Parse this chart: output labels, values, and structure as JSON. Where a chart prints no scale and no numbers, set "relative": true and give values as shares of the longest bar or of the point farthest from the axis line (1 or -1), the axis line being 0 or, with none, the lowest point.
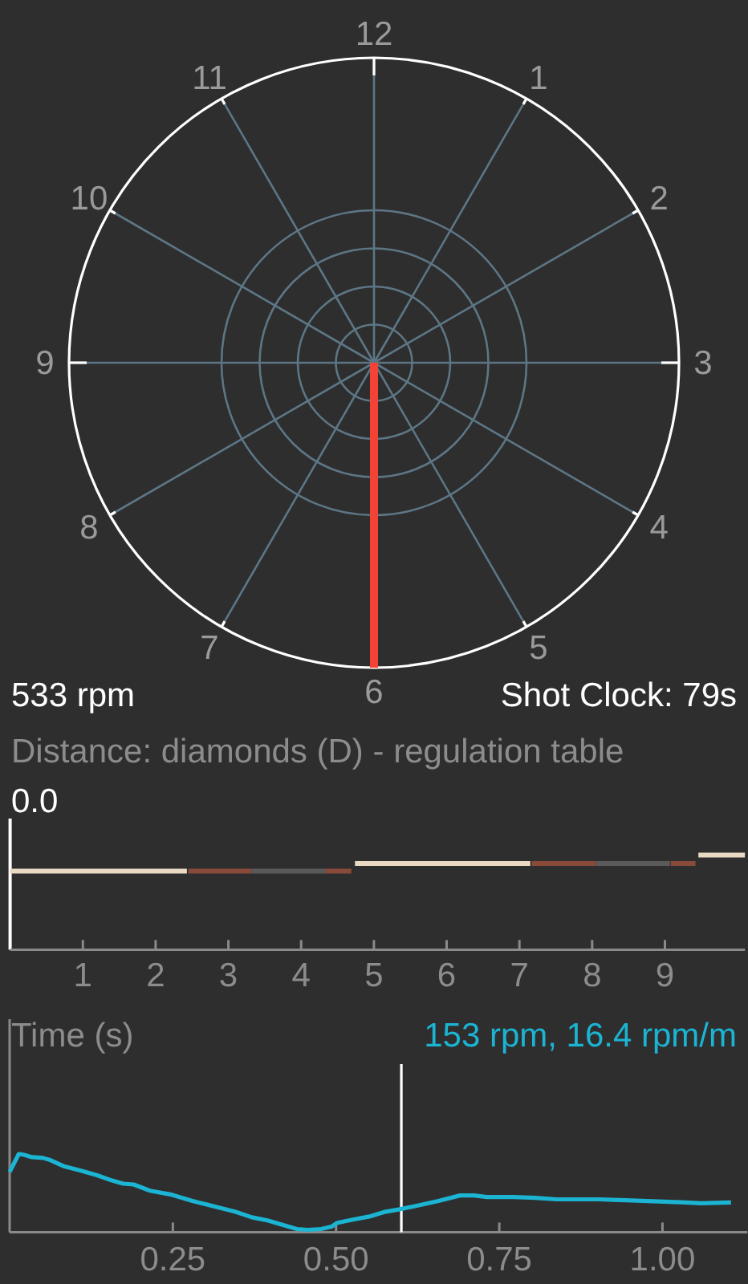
{
  "chart_data": [
    {
      "type": "other",
      "categories": [
        "12",
        "1",
        "2",
        "3",
        "4",
        "5",
        "6",
        "7",
        "8",
        "9",
        "10",
        "11"
      ],
      "needle": "6",
      "annotations": [
        "533 rpm",
        "Shot Clock: 79s"
      ]
    },
    {
      "type": "line",
      "title": "Distance: diamonds (D) - regulation table",
      "subtitle": "0.0",
      "relative": true,
      "xlim": [
        0,
        10.1
      ],
      "xticks": [
        1,
        2,
        3,
        4,
        5,
        6,
        7,
        8,
        9
      ],
      "series": [
        {
          "color": "#e9d9c5",
          "x": [
            0,
            2.43,
            2.44,
            4.74,
            7.15,
            7.16,
            9.46,
            10.1
          ],
          "values": [
            0.83,
            0.83,
            null,
            0.91,
            0.91,
            null,
            1,
            1
          ]
        },
        {
          "color": "#8a4a3a",
          "x": [
            2.45,
            3.32,
            3.33,
            4.34,
            4.69,
            4.7,
            7.17,
            8.05,
            8.06,
            9.08,
            9.42
          ],
          "values": [
            0.83,
            0.83,
            null,
            0.83,
            0.83,
            null,
            0.91,
            0.91,
            null,
            0.91,
            0.91
          ]
        },
        {
          "color": "#5a5a5a",
          "x": [
            3.32,
            4.34,
            4.35,
            8.05,
            9.07
          ],
          "values": [
            0.83,
            0.83,
            null,
            0.91,
            0.91
          ]
        }
      ]
    },
    {
      "type": "line",
      "title": "Time (s)",
      "relative": true,
      "legend": "top right",
      "xlim": [
        0,
        1.13
      ],
      "xticks": [
        {
          "value": 0.25,
          "label": "0.25"
        },
        {
          "value": 0.5,
          "label": "0.50"
        },
        {
          "value": 0.75,
          "label": "0.75"
        },
        {
          "value": 1,
          "label": "1.00"
        }
      ],
      "ref_lines": [
        {
          "axis": "x",
          "value": 0.6,
          "color": "#ffffff"
        }
      ],
      "series": [
        {
          "name": "153 rpm, 16.4 rpm/m",
          "color": "#1bb4d3",
          "x": [
            0.0,
            0.014,
            0.022,
            0.034,
            0.051,
            0.063,
            0.084,
            0.108,
            0.133,
            0.157,
            0.174,
            0.19,
            0.215,
            0.248,
            0.28,
            0.313,
            0.346,
            0.371,
            0.395,
            0.42,
            0.44,
            0.457,
            0.477,
            0.493,
            0.502,
            0.526,
            0.551,
            0.575,
            0.596,
            0.625,
            0.657,
            0.69,
            0.711,
            0.731,
            0.772,
            0.805,
            0.838,
            0.87,
            0.903,
            0.936,
            0.969,
            1.002,
            1.034,
            1.059,
            1.105
          ],
          "values": [
            0.77,
            1.0,
            0.99,
            0.96,
            0.95,
            0.92,
            0.84,
            0.79,
            0.73,
            0.66,
            0.62,
            0.61,
            0.53,
            0.48,
            0.4,
            0.33,
            0.26,
            0.19,
            0.15,
            0.09,
            0.04,
            0.03,
            0.04,
            0.07,
            0.12,
            0.16,
            0.2,
            0.26,
            0.29,
            0.34,
            0.4,
            0.47,
            0.47,
            0.45,
            0.45,
            0.44,
            0.42,
            0.42,
            0.42,
            0.41,
            0.4,
            0.39,
            0.38,
            0.37,
            0.38
          ]
        }
      ]
    }
  ]
}
